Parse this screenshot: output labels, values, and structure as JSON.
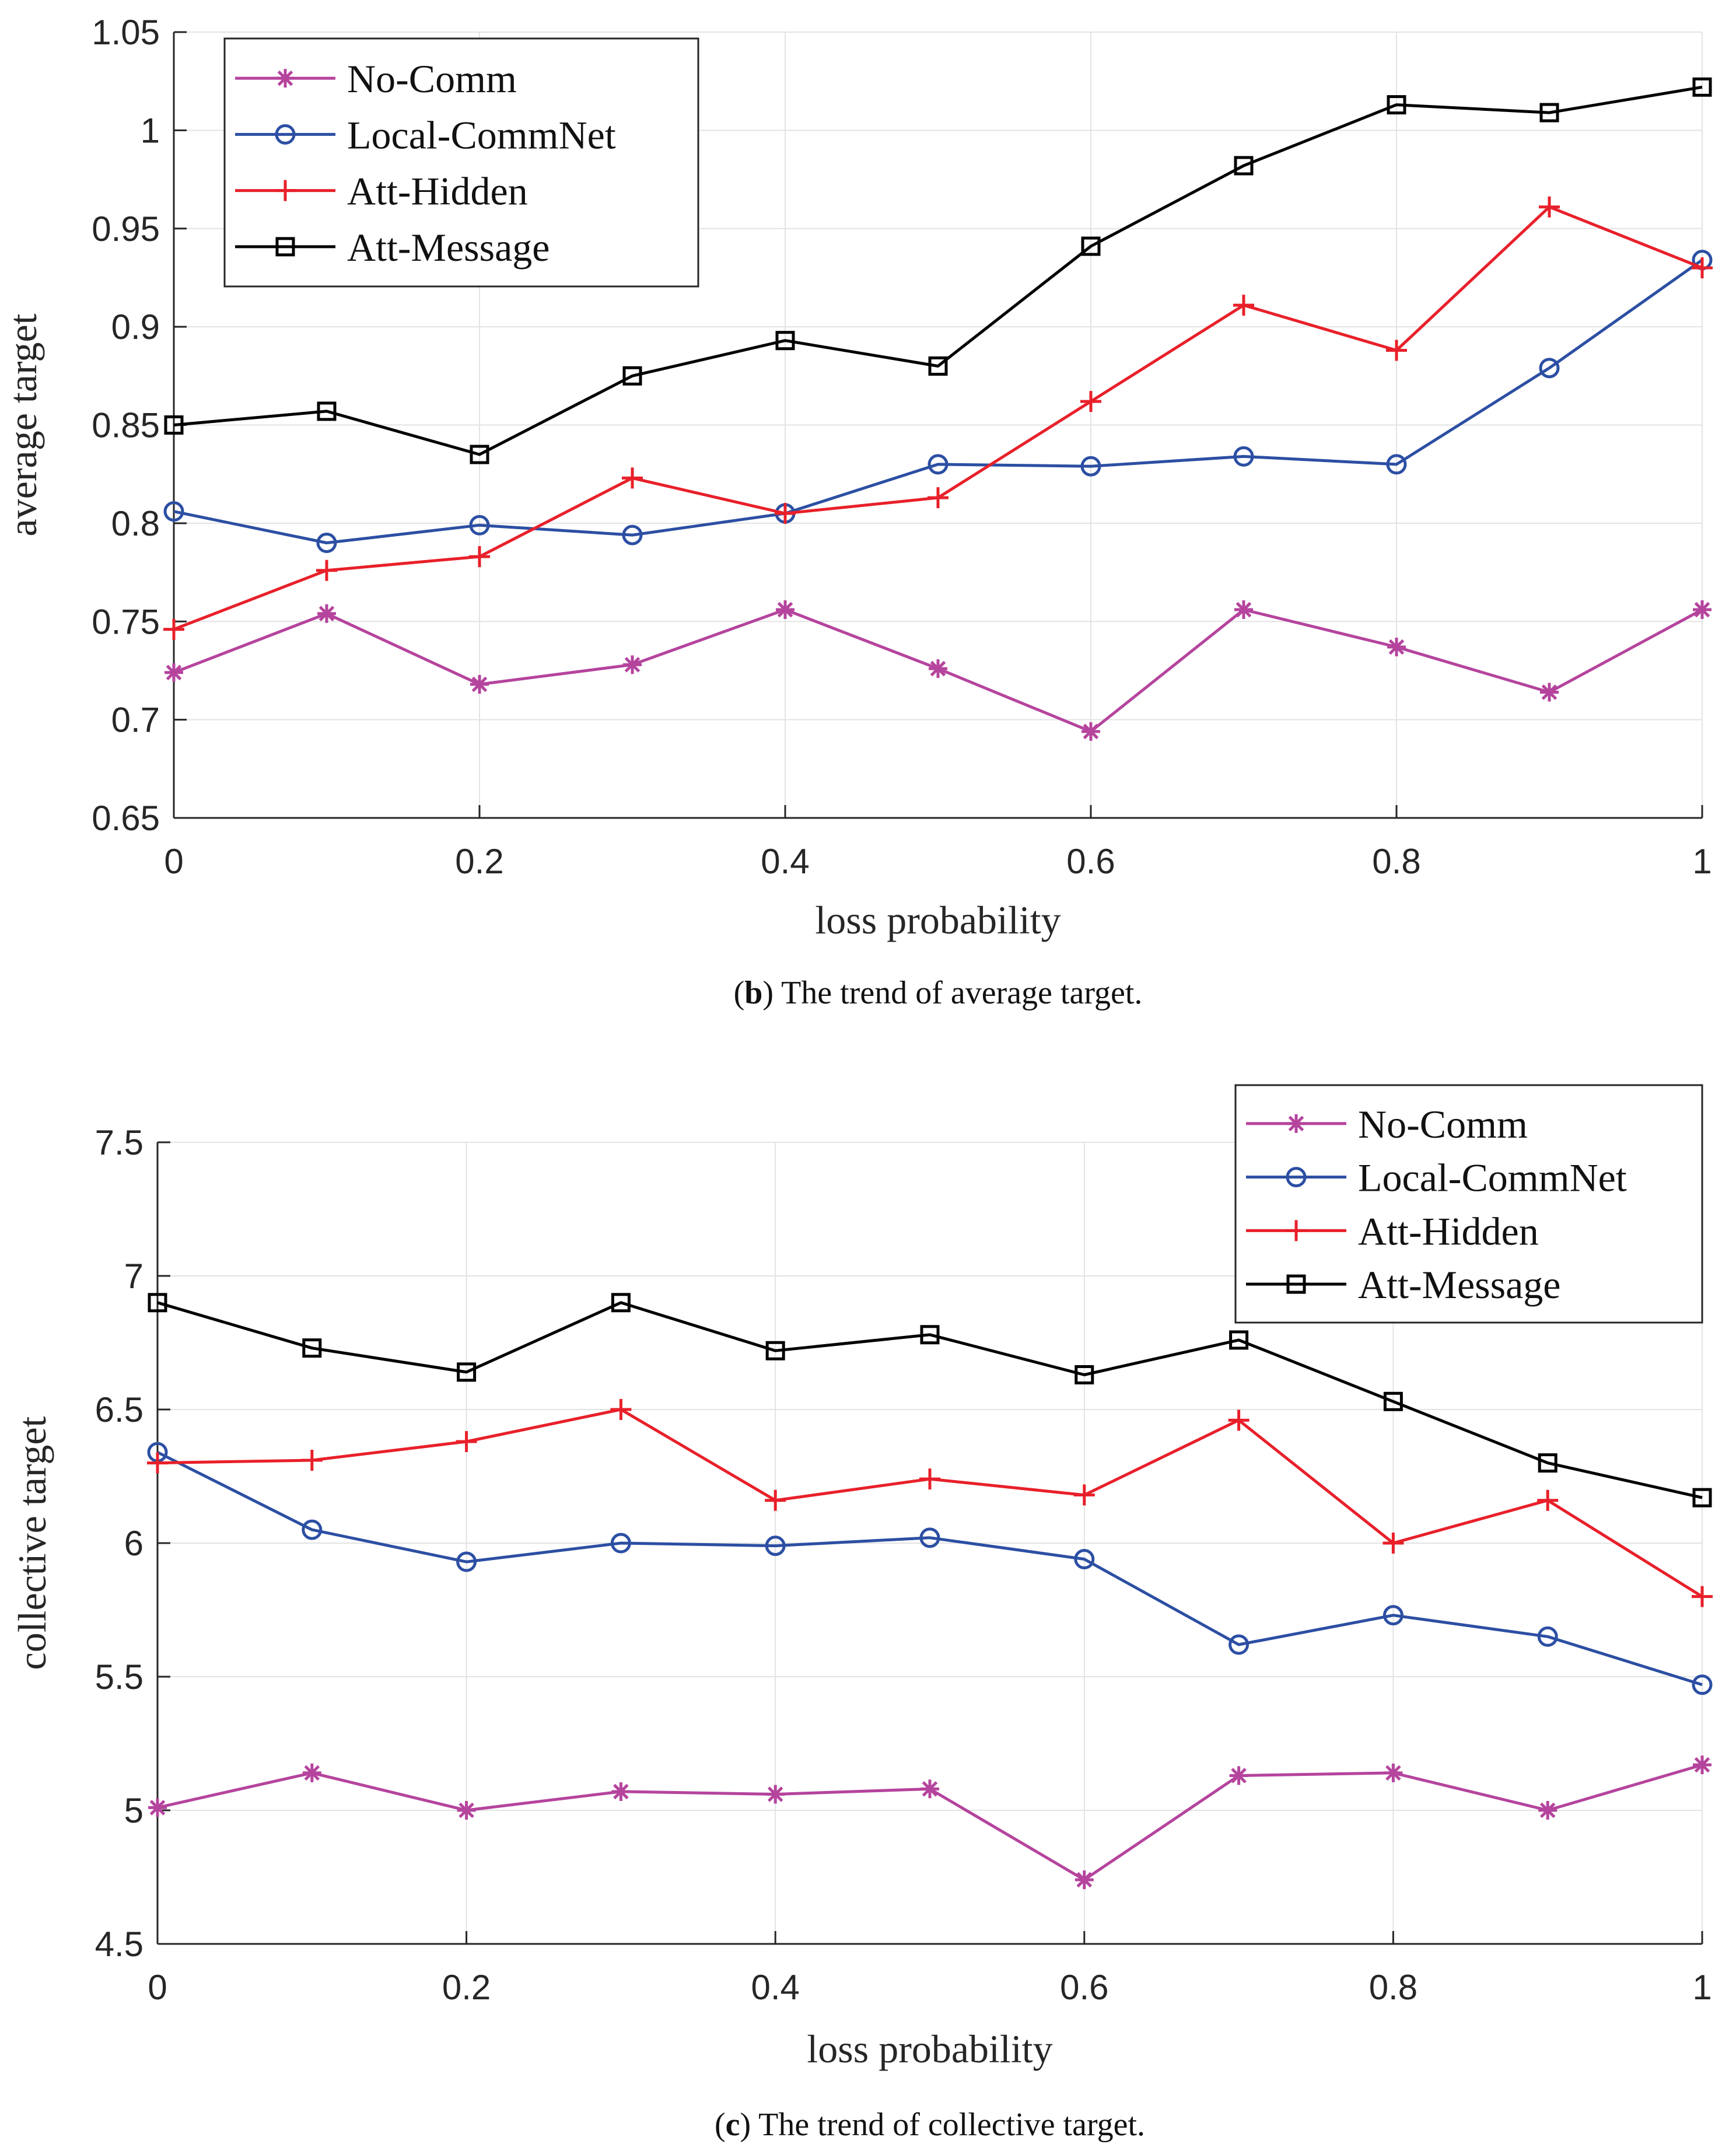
{
  "chart_data": [
    {
      "type": "line",
      "xlabel": "loss probability",
      "ylabel": "average target",
      "x": [
        0,
        0.1,
        0.2,
        0.3,
        0.4,
        0.5,
        0.6,
        0.7,
        0.8,
        0.9,
        1
      ],
      "xlim": [
        0,
        1
      ],
      "ylim": [
        0.65,
        1.05
      ],
      "xticks": [
        "0",
        "0.2",
        "0.4",
        "0.6",
        "0.8",
        "1"
      ],
      "yticks": [
        "0.65",
        "0.7",
        "0.75",
        "0.8",
        "0.85",
        "0.9",
        "0.95",
        "1",
        "1.05"
      ],
      "grid": true,
      "legend_position": "top-left",
      "caption": {
        "tag": "b",
        "text": "The trend of average target."
      },
      "series": [
        {
          "name": "No-Comm",
          "color": "#b5449d",
          "marker": "asterisk",
          "values": [
            0.724,
            0.754,
            0.718,
            0.728,
            0.756,
            0.726,
            0.694,
            0.756,
            0.737,
            0.714,
            0.756
          ]
        },
        {
          "name": "Local-CommNet",
          "color": "#2c4fa3",
          "marker": "circle",
          "values": [
            0.806,
            0.79,
            0.799,
            0.794,
            0.805,
            0.83,
            0.829,
            0.834,
            0.83,
            0.879,
            0.934
          ]
        },
        {
          "name": "Att-Hidden",
          "color": "#e8202a",
          "marker": "plus",
          "values": [
            0.746,
            0.776,
            0.783,
            0.823,
            0.805,
            0.813,
            0.862,
            0.911,
            0.888,
            0.961,
            0.93
          ]
        },
        {
          "name": "Att-Message",
          "color": "#000000",
          "marker": "square",
          "values": [
            0.85,
            0.857,
            0.835,
            0.875,
            0.893,
            0.88,
            0.941,
            0.982,
            1.013,
            1.009,
            1.022
          ]
        }
      ]
    },
    {
      "type": "line",
      "xlabel": "loss probability",
      "ylabel": "collective target",
      "x": [
        0,
        0.1,
        0.2,
        0.3,
        0.4,
        0.5,
        0.6,
        0.7,
        0.8,
        0.9,
        1
      ],
      "xlim": [
        0,
        1
      ],
      "ylim": [
        4.5,
        7.5
      ],
      "xticks": [
        "0",
        "0.2",
        "0.4",
        "0.6",
        "0.8",
        "1"
      ],
      "yticks": [
        "4.5",
        "5",
        "5.5",
        "6",
        "6.5",
        "7",
        "7.5"
      ],
      "grid": true,
      "legend_position": "top-right",
      "caption": {
        "tag": "c",
        "text": "The trend of collective target."
      },
      "series": [
        {
          "name": "No-Comm",
          "color": "#b5449d",
          "marker": "asterisk",
          "values": [
            5.01,
            5.14,
            5.0,
            5.07,
            5.06,
            5.08,
            4.74,
            5.13,
            5.14,
            5.0,
            5.17
          ]
        },
        {
          "name": "Local-CommNet",
          "color": "#2c4fa3",
          "marker": "circle",
          "values": [
            6.34,
            6.05,
            5.93,
            6.0,
            5.99,
            6.02,
            5.94,
            5.62,
            5.73,
            5.65,
            5.47
          ]
        },
        {
          "name": "Att-Hidden",
          "color": "#e8202a",
          "marker": "plus",
          "values": [
            6.3,
            6.31,
            6.38,
            6.5,
            6.16,
            6.24,
            6.18,
            6.46,
            6.0,
            6.16,
            5.8
          ]
        },
        {
          "name": "Att-Message",
          "color": "#000000",
          "marker": "square",
          "values": [
            6.9,
            6.73,
            6.64,
            6.9,
            6.72,
            6.78,
            6.63,
            6.76,
            6.53,
            6.3,
            6.17
          ]
        }
      ]
    }
  ]
}
